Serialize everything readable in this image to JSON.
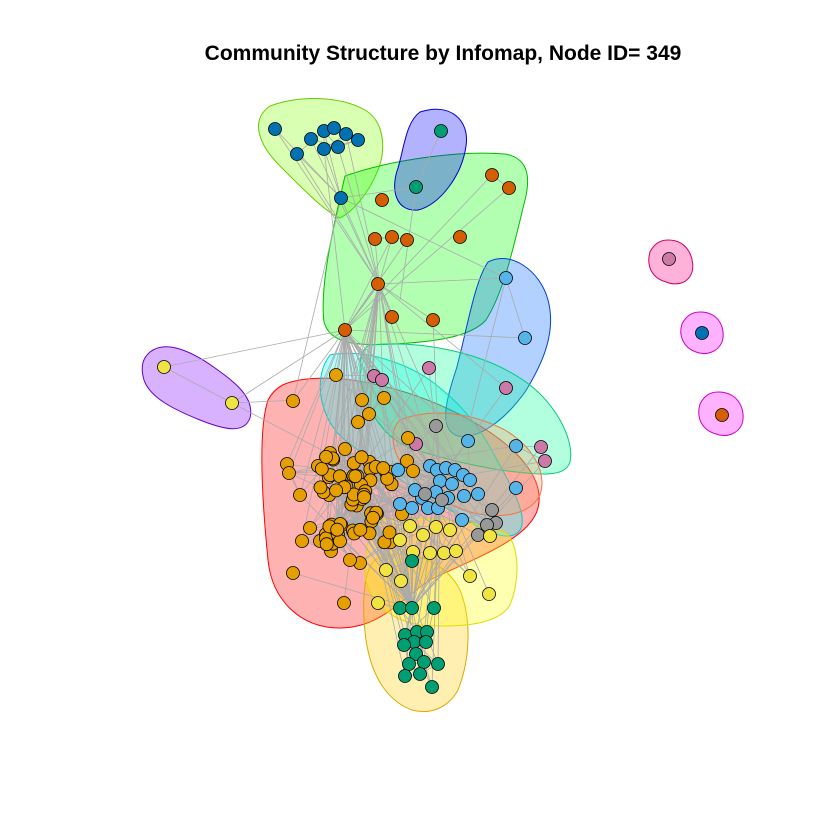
{
  "title": "Community Structure by Infomap, Node ID= 349",
  "colors": {
    "orange": "#E69F00",
    "skyblue": "#56B4E9",
    "green": "#009E73",
    "yellow": "#F0E442",
    "blue": "#0072B2",
    "vermillion": "#D55E00",
    "pink": "#CC79A7",
    "gray": "#999999",
    "edge": "#aaaaaa"
  },
  "communities": [
    {
      "name": "red-hull",
      "fill": "#FF0000",
      "stroke": "#FF0000"
    },
    {
      "name": "lime-hull",
      "fill": "#80FF00",
      "stroke": "#66cc00"
    },
    {
      "name": "green-hull",
      "fill": "#00FF00",
      "stroke": "#00bb00"
    },
    {
      "name": "navy-hull",
      "fill": "#0000FF",
      "stroke": "#0000cc"
    },
    {
      "name": "blue-hull",
      "fill": "#0066FF",
      "stroke": "#0044cc"
    },
    {
      "name": "purple-hull",
      "fill": "#8000FF",
      "stroke": "#6600cc"
    },
    {
      "name": "cyan-hull",
      "fill": "#00FFFF",
      "stroke": "#00cccc"
    },
    {
      "name": "teal-hull",
      "fill": "#00FF99",
      "stroke": "#00cc77"
    },
    {
      "name": "yellow-hull",
      "fill": "#FFCC00",
      "stroke": "#ddaa00"
    },
    {
      "name": "lightyellow-hull",
      "fill": "#FFFF00",
      "stroke": "#dddd00"
    },
    {
      "name": "salmon-hull",
      "fill": "#FF9966",
      "stroke": "#ee7744"
    },
    {
      "name": "pink-hull",
      "fill": "#FF0080",
      "stroke": "#cc0066"
    },
    {
      "name": "magenta-hull",
      "fill": "#FF00FF",
      "stroke": "#cc00cc"
    }
  ]
}
